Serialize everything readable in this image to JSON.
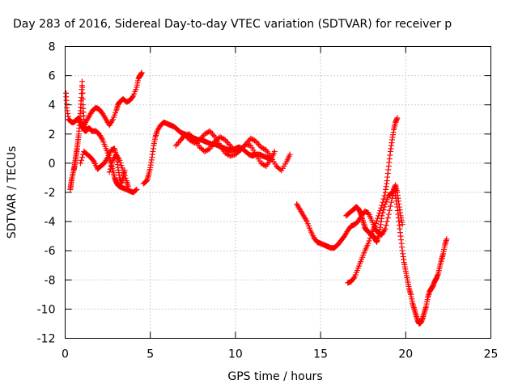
{
  "chart_data": {
    "type": "scatter",
    "title": "Day 283 of 2016, Sidereal Day-to-day VTEC variation (SDTVAR) for receiver p",
    "xlabel": "GPS time / hours",
    "ylabel": "SDTVAR / TECUs",
    "xlim": [
      0,
      25
    ],
    "ylim": [
      -12,
      8
    ],
    "xticks": [
      "0",
      "5",
      "10",
      "15",
      "20",
      "25"
    ],
    "yticks": [
      "-12",
      "-10",
      "-8",
      "-6",
      "-4",
      "-2",
      "0",
      "2",
      "4",
      "6",
      "8"
    ],
    "grid": true,
    "marker": "+",
    "color": "#ff0000",
    "series": [
      {
        "x": [
          0.05,
          0.1,
          0.2,
          0.3,
          0.4,
          0.5,
          0.6,
          0.7,
          0.8,
          0.9,
          1.0,
          1.1,
          1.2,
          1.3,
          1.4,
          1.5,
          1.6,
          1.8,
          2.0,
          2.2,
          2.4,
          2.6,
          2.7,
          2.8,
          2.9,
          3.0,
          3.1,
          3.2,
          3.4,
          3.6,
          3.8,
          4.0,
          4.2
        ],
        "y": [
          4.8,
          3.8,
          3.0,
          2.9,
          2.8,
          2.8,
          2.9,
          3.0,
          3.1,
          2.8,
          2.5,
          2.3,
          2.2,
          2.3,
          2.4,
          2.3,
          2.2,
          2.2,
          2.0,
          1.6,
          1.0,
          0.4,
          0.0,
          -0.5,
          -1.0,
          -1.3,
          -1.5,
          -1.6,
          -1.7,
          -1.8,
          -1.9,
          -2.0,
          -1.8
        ]
      },
      {
        "x": [
          0.3,
          0.35,
          0.4,
          0.5,
          0.55,
          0.6,
          0.65,
          0.7,
          0.75,
          0.8,
          0.85,
          0.9,
          0.95,
          1.0,
          1.05,
          1.1,
          1.15,
          1.2
        ],
        "y": [
          -1.8,
          -1.4,
          -1.0,
          -0.5,
          -0.2,
          0.2,
          0.6,
          1.0,
          1.5,
          2.0,
          2.8,
          3.6,
          4.5,
          5.6,
          4.0,
          3.0,
          2.5,
          2.3
        ]
      },
      {
        "x": [
          1.0,
          1.2,
          1.4,
          1.6,
          1.8,
          2.0,
          2.2,
          2.4,
          2.6,
          2.8,
          3.0,
          3.1,
          3.2,
          3.4,
          3.6,
          3.8,
          4.0,
          4.2,
          4.3,
          4.4,
          4.5
        ],
        "y": [
          2.4,
          2.8,
          3.2,
          3.6,
          3.8,
          3.7,
          3.4,
          3.0,
          2.6,
          3.0,
          3.6,
          4.0,
          4.2,
          4.4,
          4.2,
          4.3,
          4.6,
          5.2,
          5.8,
          6.0,
          6.2
        ]
      },
      {
        "x": [
          0.9,
          1.1,
          1.3,
          1.5,
          1.7,
          1.9,
          2.1,
          2.3,
          2.5,
          2.7,
          2.9,
          3.0,
          3.1,
          3.2,
          3.3,
          3.4,
          3.5
        ],
        "y": [
          0.0,
          0.8,
          0.6,
          0.4,
          0.1,
          -0.4,
          -0.2,
          0.0,
          0.4,
          0.9,
          1.0,
          0.5,
          -0.3,
          -1.0,
          -1.4,
          -1.0,
          -0.5
        ]
      },
      {
        "x": [
          2.6,
          2.8,
          3.0,
          3.2,
          3.4,
          3.6,
          3.7
        ],
        "y": [
          -0.6,
          0.2,
          0.6,
          0.2,
          -0.5,
          -1.2,
          -1.6
        ]
      },
      {
        "x": [
          4.6,
          4.8,
          4.9,
          5.0,
          5.1,
          5.2,
          5.3,
          5.4,
          5.6,
          5.8,
          6.0,
          6.2,
          6.4,
          6.6,
          6.8,
          7.0,
          7.2,
          7.4,
          7.6,
          7.8,
          8.0,
          8.2,
          8.4,
          8.6,
          8.8,
          9.0,
          9.2,
          9.4,
          9.6,
          9.8,
          10.0,
          10.2,
          10.4,
          10.6,
          10.8,
          11.0,
          11.2,
          11.4,
          11.6,
          11.8,
          12.0
        ],
        "y": [
          -1.4,
          -1.2,
          -0.8,
          -0.3,
          0.4,
          1.2,
          1.8,
          2.2,
          2.6,
          2.8,
          2.7,
          2.6,
          2.5,
          2.3,
          2.1,
          2.0,
          1.9,
          1.8,
          1.7,
          1.6,
          1.6,
          1.5,
          1.4,
          1.3,
          1.3,
          1.2,
          1.1,
          1.0,
          0.9,
          0.9,
          1.0,
          1.1,
          1.0,
          0.8,
          0.6,
          0.5,
          0.6,
          0.6,
          0.5,
          0.4,
          0.3
        ]
      },
      {
        "x": [
          6.5,
          6.8,
          7.0,
          7.3,
          7.6,
          7.9,
          8.2,
          8.5,
          8.8,
          9.1,
          9.4,
          9.7,
          10.0,
          10.3,
          10.6,
          10.9,
          11.2,
          11.5,
          11.8,
          12.1,
          12.4,
          12.7,
          13.0,
          13.2
        ],
        "y": [
          1.2,
          1.6,
          1.9,
          2.0,
          1.6,
          1.1,
          0.8,
          1.0,
          1.5,
          1.8,
          1.6,
          1.2,
          0.8,
          0.9,
          1.3,
          1.7,
          1.5,
          1.1,
          0.9,
          0.4,
          -0.2,
          -0.5,
          0.1,
          0.6
        ]
      },
      {
        "x": [
          7.0,
          7.3,
          7.6,
          7.9,
          8.2,
          8.5,
          8.8,
          9.1,
          9.4,
          9.7,
          10.0,
          10.3,
          10.6,
          10.9,
          11.2,
          11.5,
          11.8,
          12.1,
          12.3
        ],
        "y": [
          2.0,
          1.6,
          1.4,
          1.6,
          2.0,
          2.2,
          1.8,
          1.2,
          0.7,
          0.5,
          0.6,
          0.9,
          1.3,
          1.2,
          0.6,
          0.0,
          -0.2,
          0.3,
          0.8
        ]
      },
      {
        "x": [
          13.6,
          13.8,
          14.0,
          14.2,
          14.4,
          14.6,
          14.8,
          15.0,
          15.2,
          15.4,
          15.6,
          15.8,
          16.0,
          16.2,
          16.4,
          16.6,
          16.8,
          17.0,
          17.2,
          17.4,
          17.6,
          17.8,
          18.0,
          18.2,
          18.4,
          18.6,
          18.8,
          19.0,
          19.2,
          19.3,
          19.4,
          19.5,
          19.6,
          19.7,
          19.8
        ],
        "y": [
          -2.8,
          -3.2,
          -3.6,
          -4.0,
          -4.6,
          -5.1,
          -5.4,
          -5.5,
          -5.6,
          -5.7,
          -5.8,
          -5.8,
          -5.6,
          -5.3,
          -5.0,
          -4.6,
          -4.3,
          -4.2,
          -4.0,
          -3.6,
          -3.3,
          -3.4,
          -3.9,
          -4.5,
          -4.8,
          -4.9,
          -4.5,
          -3.5,
          -2.4,
          -1.8,
          -1.5,
          -2.0,
          -2.8,
          -3.6,
          -4.2
        ]
      },
      {
        "x": [
          16.5,
          16.7,
          16.9,
          17.0,
          17.1,
          17.2,
          17.3,
          17.4,
          17.5,
          17.6,
          17.7,
          17.8,
          17.9,
          18.0,
          18.1,
          18.2,
          18.3,
          18.4,
          18.5,
          18.6,
          18.8,
          19.0,
          19.2,
          19.4
        ],
        "y": [
          -3.6,
          -3.4,
          -3.2,
          -3.1,
          -3.0,
          -3.1,
          -3.3,
          -3.6,
          -4.0,
          -4.4,
          -4.6,
          -4.7,
          -4.8,
          -4.9,
          -5.0,
          -5.2,
          -5.4,
          -5.0,
          -4.4,
          -3.6,
          -2.8,
          -2.2,
          -2.0,
          -1.8
        ]
      },
      {
        "x": [
          16.6,
          16.8,
          17.0,
          17.2,
          17.4,
          17.6,
          17.8,
          18.0,
          18.2,
          18.4,
          18.6,
          18.8,
          18.9,
          19.0,
          19.1,
          19.2,
          19.3,
          19.4,
          19.5
        ],
        "y": [
          -8.2,
          -8.1,
          -7.8,
          -7.2,
          -6.6,
          -6.0,
          -5.5,
          -4.8,
          -4.3,
          -3.6,
          -2.9,
          -2.0,
          -1.2,
          -0.2,
          0.8,
          1.6,
          2.3,
          2.8,
          3.1
        ]
      },
      {
        "x": [
          19.4,
          19.5,
          19.6,
          19.7,
          19.8,
          19.9,
          20.0,
          20.1,
          20.2,
          20.3,
          20.4,
          20.5,
          20.6,
          20.7,
          20.8,
          20.9,
          21.0,
          21.1,
          21.2,
          21.3,
          21.4,
          21.5,
          21.6,
          21.7,
          21.8,
          21.9,
          22.0,
          22.1,
          22.2,
          22.3,
          22.4
        ],
        "y": [
          -2.2,
          -3.0,
          -4.0,
          -5.0,
          -6.0,
          -6.8,
          -7.4,
          -8.0,
          -8.6,
          -9.0,
          -9.6,
          -10.0,
          -10.4,
          -10.8,
          -11.0,
          -10.9,
          -10.6,
          -10.2,
          -9.8,
          -9.2,
          -8.8,
          -8.6,
          -8.4,
          -8.1,
          -7.9,
          -7.6,
          -7.1,
          -6.6,
          -6.2,
          -5.6,
          -5.2
        ]
      }
    ]
  }
}
